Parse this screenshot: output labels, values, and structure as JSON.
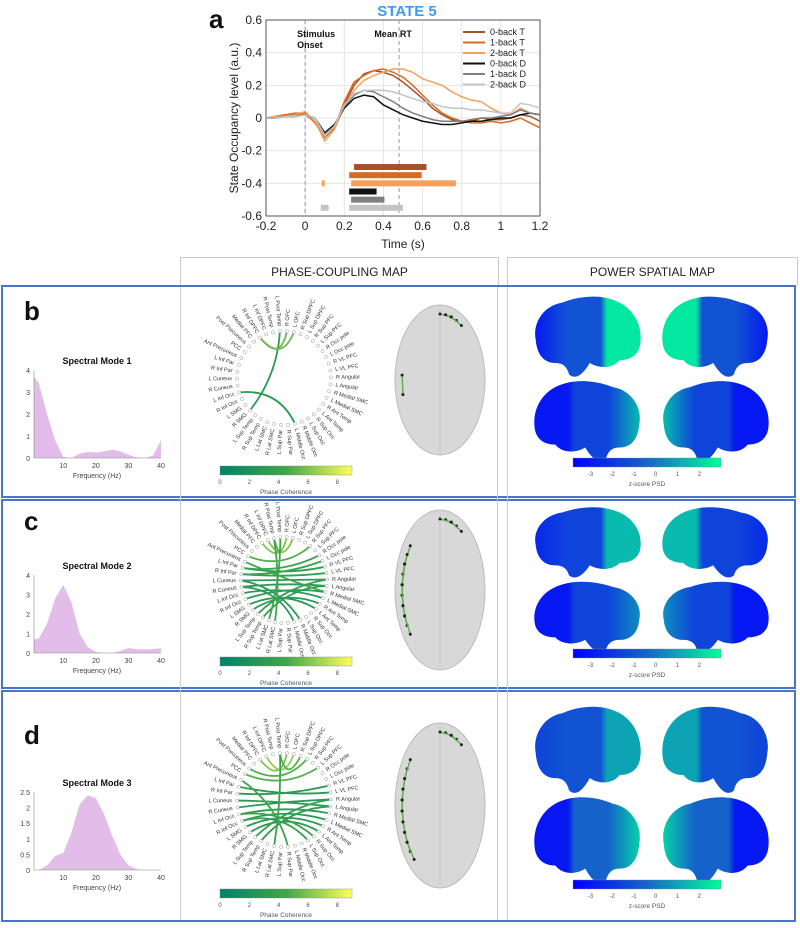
{
  "panel_labels": {
    "a": "a",
    "b": "b",
    "c": "c",
    "d": "d"
  },
  "column_headers": {
    "phase": "PHASE-COUPLING MAP",
    "power": "POWER SPATIAL MAP"
  },
  "chart_data": [
    {
      "type": "line",
      "title": "STATE 5",
      "title_color": "#3d9bf5",
      "xlabel": "Time (s)",
      "ylabel": "State Occupancy level (a.u.)",
      "xlim": [
        -0.2,
        1.2
      ],
      "ylim": [
        -0.6,
        0.6
      ],
      "xticks": [
        "-0.2",
        "0",
        "0.2",
        "0.4",
        "0.6",
        "0.8",
        "1",
        "1.2"
      ],
      "xtick_values": [
        -0.2,
        0,
        0.2,
        0.4,
        0.6,
        0.8,
        1,
        1.2
      ],
      "yticks": [
        "-0.6",
        "-0.4",
        "-0.2",
        "0",
        "0.2",
        "0.4",
        "0.6"
      ],
      "ytick_values": [
        -0.6,
        -0.4,
        -0.2,
        0,
        0.2,
        0.4,
        0.6
      ],
      "grid": true,
      "legend_position": "top-right",
      "annotations": [
        {
          "text1": "Stimulus",
          "text2": "Onset",
          "x": 0
        },
        {
          "text1": "Mean RT",
          "text2": "",
          "x": 0.48
        }
      ],
      "x": [
        -0.2,
        -0.15,
        -0.1,
        -0.05,
        0,
        0.05,
        0.1,
        0.15,
        0.2,
        0.25,
        0.3,
        0.35,
        0.4,
        0.45,
        0.5,
        0.55,
        0.6,
        0.65,
        0.7,
        0.75,
        0.8,
        0.85,
        0.9,
        0.95,
        1.0,
        1.05,
        1.1,
        1.15,
        1.2
      ],
      "series": [
        {
          "name": "0-back T",
          "color": "#a5512a",
          "values": [
            0,
            0.01,
            0.02,
            0.02,
            0.02,
            -0.02,
            -0.1,
            -0.05,
            0.08,
            0.2,
            0.27,
            0.29,
            0.28,
            0.26,
            0.22,
            0.17,
            0.12,
            0.06,
            0.02,
            -0.01,
            -0.02,
            -0.02,
            0,
            -0.01,
            -0.01,
            0,
            0.02,
            0.01,
            -0.02
          ],
          "sig": [
            [
              0.25,
              0.62
            ]
          ],
          "sig_y": -0.3
        },
        {
          "name": "1-back T",
          "color": "#d8691f",
          "values": [
            0,
            0.01,
            0.02,
            0.03,
            0.03,
            -0.03,
            -0.12,
            -0.06,
            0.1,
            0.22,
            0.26,
            0.29,
            0.3,
            0.28,
            0.25,
            0.2,
            0.14,
            0.08,
            0.03,
            0,
            -0.02,
            -0.03,
            -0.03,
            -0.02,
            -0.03,
            -0.02,
            0,
            -0.03,
            -0.06
          ],
          "sig": [
            [
              0.225,
              0.595
            ]
          ],
          "sig_y": -0.35
        },
        {
          "name": "2-back T",
          "color": "#f5a05a",
          "values": [
            0,
            0.01,
            0.01,
            0.02,
            0.04,
            -0.02,
            -0.14,
            -0.07,
            0.07,
            0.17,
            0.23,
            0.26,
            0.28,
            0.3,
            0.3,
            0.28,
            0.24,
            0.22,
            0.2,
            0.16,
            0.13,
            0.11,
            0.1,
            0.06,
            0.03,
            0.02,
            0.06,
            0.03,
            0.02
          ],
          "sig": [
            [
              0.085,
              0.1
            ],
            [
              0.235,
              0.77
            ]
          ],
          "sig_y": -0.4
        },
        {
          "name": "0-back D",
          "color": "#111111",
          "values": [
            0,
            0,
            0.01,
            0.01,
            0.02,
            0,
            -0.09,
            -0.04,
            0.06,
            0.12,
            0.14,
            0.13,
            0.08,
            0.05,
            0.02,
            0,
            -0.02,
            -0.03,
            -0.04,
            -0.04,
            -0.03,
            -0.02,
            -0.02,
            -0.01,
            0,
            0,
            0.02,
            0.03,
            0.02
          ],
          "sig": [
            [
              0.225,
              0.365
            ]
          ],
          "sig_y": -0.45
        },
        {
          "name": "1-back D",
          "color": "#7f7f7f",
          "values": [
            0,
            0,
            0.01,
            0.01,
            0.02,
            0,
            -0.1,
            -0.05,
            0.07,
            0.14,
            0.17,
            0.16,
            0.13,
            0.1,
            0.06,
            0.03,
            0.01,
            -0.01,
            -0.02,
            -0.02,
            -0.02,
            -0.01,
            0,
            0,
            0.01,
            0.02,
            0.05,
            0.03,
            0.02
          ],
          "sig": [
            [
              0.235,
              0.405
            ]
          ],
          "sig_y": -0.5
        },
        {
          "name": "2-back D",
          "color": "#c4c4c4",
          "values": [
            0,
            0,
            0.01,
            0.01,
            0.02,
            0,
            -0.11,
            -0.05,
            0.08,
            0.15,
            0.17,
            0.17,
            0.17,
            0.16,
            0.14,
            0.12,
            0.1,
            0.09,
            0.07,
            0.06,
            0.06,
            0.05,
            0.05,
            0.04,
            0.03,
            0.03,
            0.09,
            0.08,
            0.06
          ],
          "sig": [
            [
              0.08,
              0.12
            ],
            [
              0.225,
              0.5
            ]
          ],
          "sig_y": -0.55
        }
      ]
    },
    {
      "type": "area",
      "title": "Spectral Mode 1",
      "xlabel": "Frequency (Hz)",
      "xlim": [
        1,
        40
      ],
      "ylim": [
        0,
        4
      ],
      "xticks": [
        10,
        20,
        30,
        40
      ],
      "yticks": [
        0,
        1,
        2,
        3,
        4
      ],
      "color": "#e2bdea",
      "x": [
        1,
        2.5,
        5,
        7.5,
        10,
        12.5,
        15,
        17.5,
        20,
        22.5,
        25,
        27.5,
        30,
        32.5,
        35,
        37.5,
        40
      ],
      "values": [
        3.7,
        3.4,
        2.0,
        0.8,
        0.05,
        0,
        0.2,
        0.28,
        0.25,
        0.3,
        0.38,
        0.3,
        0.15,
        0.03,
        0,
        0.1,
        0.8
      ]
    },
    {
      "type": "area",
      "title": "Spectral Mode 2",
      "xlabel": "Frequency (Hz)",
      "xlim": [
        1,
        40
      ],
      "ylim": [
        0,
        4
      ],
      "xticks": [
        10,
        20,
        30,
        40
      ],
      "yticks": [
        0,
        1,
        2,
        3,
        4
      ],
      "color": "#e2bdea",
      "x": [
        1,
        2.5,
        5,
        7.5,
        10,
        12.5,
        15,
        17.5,
        20,
        22.5,
        25,
        27.5,
        30,
        32.5,
        35,
        37.5,
        40
      ],
      "values": [
        0.7,
        0.75,
        1.5,
        2.8,
        3.5,
        2.6,
        1.0,
        0.3,
        0.05,
        0,
        0,
        0.1,
        0.25,
        0.2,
        0.18,
        0.2,
        0.25
      ]
    },
    {
      "type": "area",
      "title": "Spectral Mode 3",
      "xlabel": "Frequency (Hz)",
      "xlim": [
        1,
        40
      ],
      "ylim": [
        0,
        2.5
      ],
      "xticks": [
        10,
        20,
        30,
        40
      ],
      "yticks": [
        0,
        0.5,
        1,
        1.5,
        2,
        2.5
      ],
      "color": "#e2bdea",
      "x": [
        1,
        2.5,
        5,
        7.5,
        10,
        12.5,
        15,
        17.5,
        20,
        22.5,
        25,
        27.5,
        30,
        32.5,
        35,
        37.5,
        40
      ],
      "values": [
        0,
        0,
        0.15,
        0.45,
        0.55,
        1.2,
        2.1,
        2.4,
        2.3,
        1.8,
        1.1,
        0.5,
        0.15,
        0.03,
        0,
        0,
        0
      ]
    }
  ],
  "phase_coupling": {
    "nodes": [
      "L Post Temp",
      "R OFC",
      "L OFC",
      "R Sup DPFC",
      "L Sup DPFC",
      "R Sup PFC",
      "L Sup PFC",
      "R Occ pole",
      "L Occ pole",
      "R VL PFC",
      "L VL PFC",
      "R Angular",
      "L Angular",
      "R Medial SMC",
      "L Medial SMC",
      "R Ant Temp",
      "L Ant Temp",
      "R Sup Occ",
      "L Sup Occ",
      "R Middle Occ",
      "L Middle Occ",
      "R Sup Par",
      "L Sup Par",
      "R Lat SMC",
      "L Lat SMC",
      "R Sup Temp",
      "L Sup Temp",
      "R SMG",
      "L SMG",
      "R Inf Occ",
      "L Inf Occ",
      "R Cuneus",
      "L Cuneus",
      "R Inf Par",
      "L Inf Par",
      "Ant Precuneus",
      "PCC",
      "Post Precuneus",
      "Medial PFC",
      "R Inf DPFC",
      "L Inf DPFC",
      "R Post Temp"
    ],
    "colorbar_label": "Phase Coherence",
    "colorbar_ticks": [
      0,
      2,
      4,
      6,
      8
    ],
    "colorbar_range": [
      0,
      9
    ],
    "colormap": [
      "#00836b",
      "#3fa64a",
      "#ffff55"
    ],
    "modes": [
      {
        "edges": [
          [
            0,
            27,
            3
          ],
          [
            1,
            39,
            5.5
          ],
          [
            2,
            39,
            5.5
          ],
          [
            30,
            20,
            3
          ]
        ]
      },
      {
        "edges": [
          [
            1,
            39,
            6
          ],
          [
            2,
            40,
            6
          ],
          [
            0,
            41,
            5
          ],
          [
            32,
            11,
            3
          ],
          [
            31,
            12,
            3
          ],
          [
            29,
            13,
            3
          ],
          [
            30,
            14,
            3
          ],
          [
            34,
            9,
            3.5
          ],
          [
            33,
            10,
            3.5
          ],
          [
            28,
            16,
            3
          ],
          [
            27,
            15,
            3
          ],
          [
            32,
            19,
            3
          ],
          [
            31,
            20,
            3
          ],
          [
            11,
            26,
            3.5
          ],
          [
            12,
            25,
            3.5
          ],
          [
            0,
            24,
            4.5
          ],
          [
            41,
            23,
            4.5
          ],
          [
            7,
            34,
            4
          ],
          [
            8,
            33,
            4
          ],
          [
            36,
            5,
            5
          ],
          [
            35,
            13,
            4.5
          ]
        ]
      },
      {
        "edges": [
          [
            1,
            39,
            6
          ],
          [
            2,
            40,
            6.5
          ],
          [
            0,
            3,
            5
          ],
          [
            32,
            12,
            3
          ],
          [
            31,
            11,
            3
          ],
          [
            30,
            13,
            3
          ],
          [
            29,
            14,
            3
          ],
          [
            33,
            9,
            3
          ],
          [
            34,
            10,
            3
          ],
          [
            28,
            15,
            3
          ],
          [
            27,
            16,
            3
          ],
          [
            26,
            11,
            3.5
          ],
          [
            25,
            12,
            3.5
          ],
          [
            0,
            23,
            4
          ],
          [
            36,
            6,
            5
          ],
          [
            37,
            4,
            5
          ],
          [
            21,
            35,
            4.5
          ],
          [
            17,
            30,
            4
          ],
          [
            18,
            29,
            4
          ]
        ]
      }
    ]
  },
  "power_map": {
    "colorbar_label": "z-score PSD",
    "colorbar_ticks": [
      -3,
      -2,
      -1,
      0,
      1,
      2
    ],
    "colorbar_range": [
      -3.8,
      3
    ],
    "colormap": [
      "#0000ff",
      "#1565c8",
      "#00ff99"
    ],
    "modes": [
      {
        "brains": [
          {
            "z_back": -3,
            "z_mid": -1,
            "z_front": 2.5
          },
          {
            "z_back": -3,
            "z_mid": -1,
            "z_front": 2.5
          },
          {
            "z_back": 1.5,
            "z_mid": -1.5,
            "z_front": -3
          },
          {
            "z_back": 1.5,
            "z_mid": -1.5,
            "z_front": -3
          }
        ]
      },
      {
        "brains": [
          {
            "z_back": -2.5,
            "z_mid": -1.5,
            "z_front": 1.5
          },
          {
            "z_back": -2.5,
            "z_mid": -1.5,
            "z_front": 1.5
          },
          {
            "z_back": 0.5,
            "z_mid": -1.5,
            "z_front": -3
          },
          {
            "z_back": 0.5,
            "z_mid": -1.5,
            "z_front": -3
          }
        ]
      },
      {
        "brains": [
          {
            "z_back": -1.5,
            "z_mid": -1,
            "z_front": 1
          },
          {
            "z_back": -1.5,
            "z_mid": -1,
            "z_front": 1
          },
          {
            "z_back": 2,
            "z_mid": -0.5,
            "z_front": -3
          },
          {
            "z_back": 2,
            "z_mid": -0.5,
            "z_front": -3
          }
        ]
      }
    ]
  }
}
